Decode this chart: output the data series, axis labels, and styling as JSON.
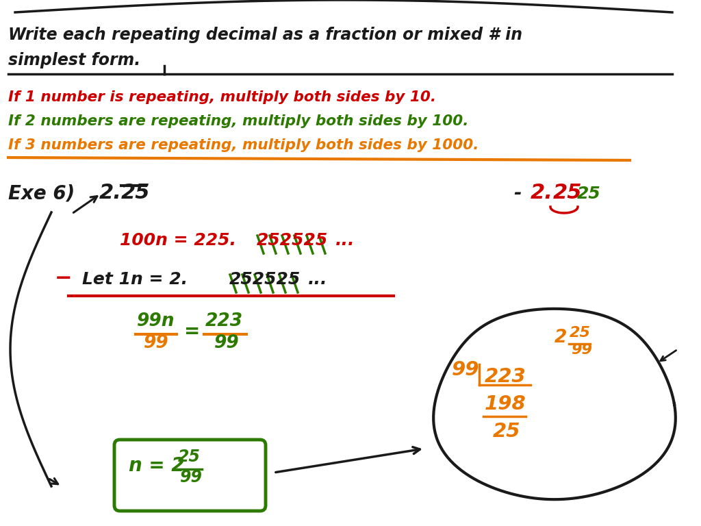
{
  "bg_color": "#ffffff",
  "title_line1": "Write each repeating decimal as a fraction or mixed # in",
  "title_line2": "simplest form.",
  "rule1": "If 1 number is repeating, multiply both sides by 10.",
  "rule2": "If 2 numbers are repeating, multiply both sides by 100.",
  "rule3": "If 3 numbers are repeating, multiply both sides by 1000.",
  "color_black": "#1a1a1a",
  "color_red": "#cc0000",
  "color_green": "#2d7a00",
  "color_orange": "#e87800"
}
